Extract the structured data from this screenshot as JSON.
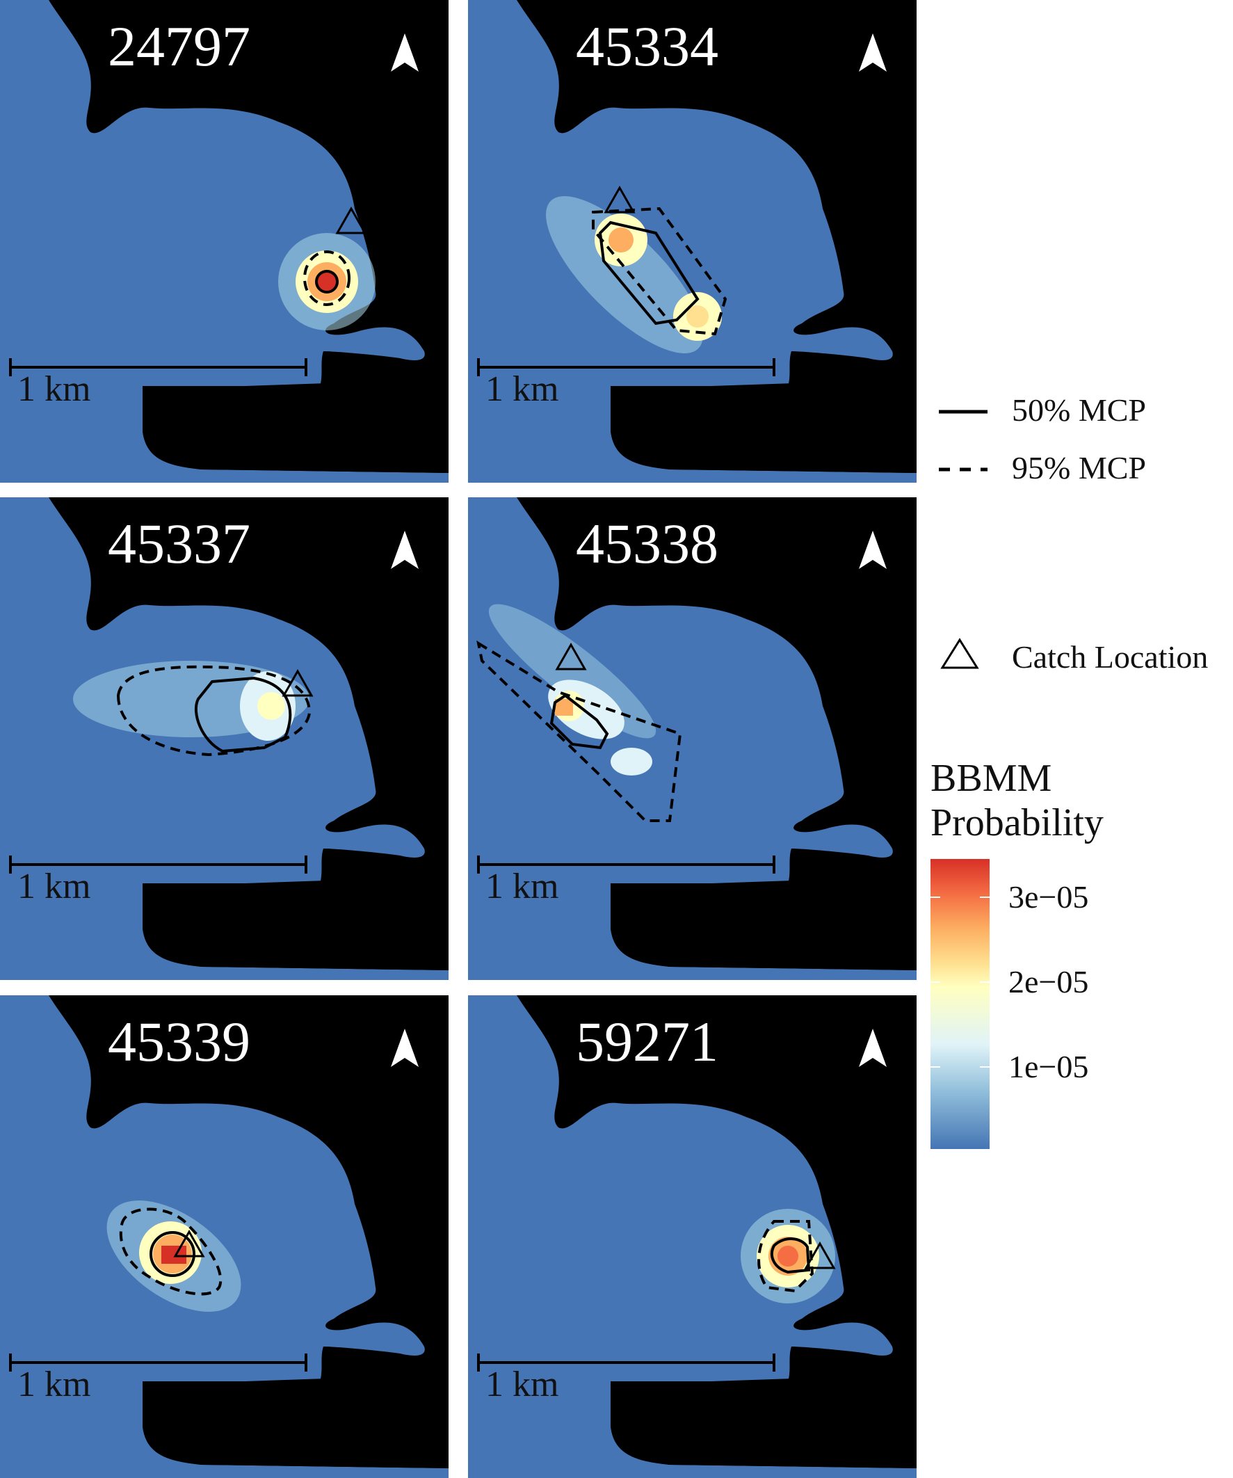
{
  "panels": [
    {
      "id": "24797",
      "title": "24797",
      "scale_label": "1 km"
    },
    {
      "id": "45334",
      "title": "45334",
      "scale_label": "1 km"
    },
    {
      "id": "45337",
      "title": "45337",
      "scale_label": "1 km"
    },
    {
      "id": "45338",
      "title": "45338",
      "scale_label": "1 km"
    },
    {
      "id": "45339",
      "title": "45339",
      "scale_label": "1 km"
    },
    {
      "id": "59271",
      "title": "59271",
      "scale_label": "1 km"
    }
  ],
  "legend": {
    "mcp50": "50% MCP",
    "mcp95": "95% MCP",
    "catch": "Catch Location",
    "colorbar_title_1": "BBMM",
    "colorbar_title_2": "Probability",
    "ticks": [
      "3e−05",
      "2e−05",
      "1e−05"
    ]
  },
  "colors": {
    "water": "#4575b4",
    "land": "#000000",
    "scale_low": "#4575b4",
    "scale_high": "#d73027"
  }
}
